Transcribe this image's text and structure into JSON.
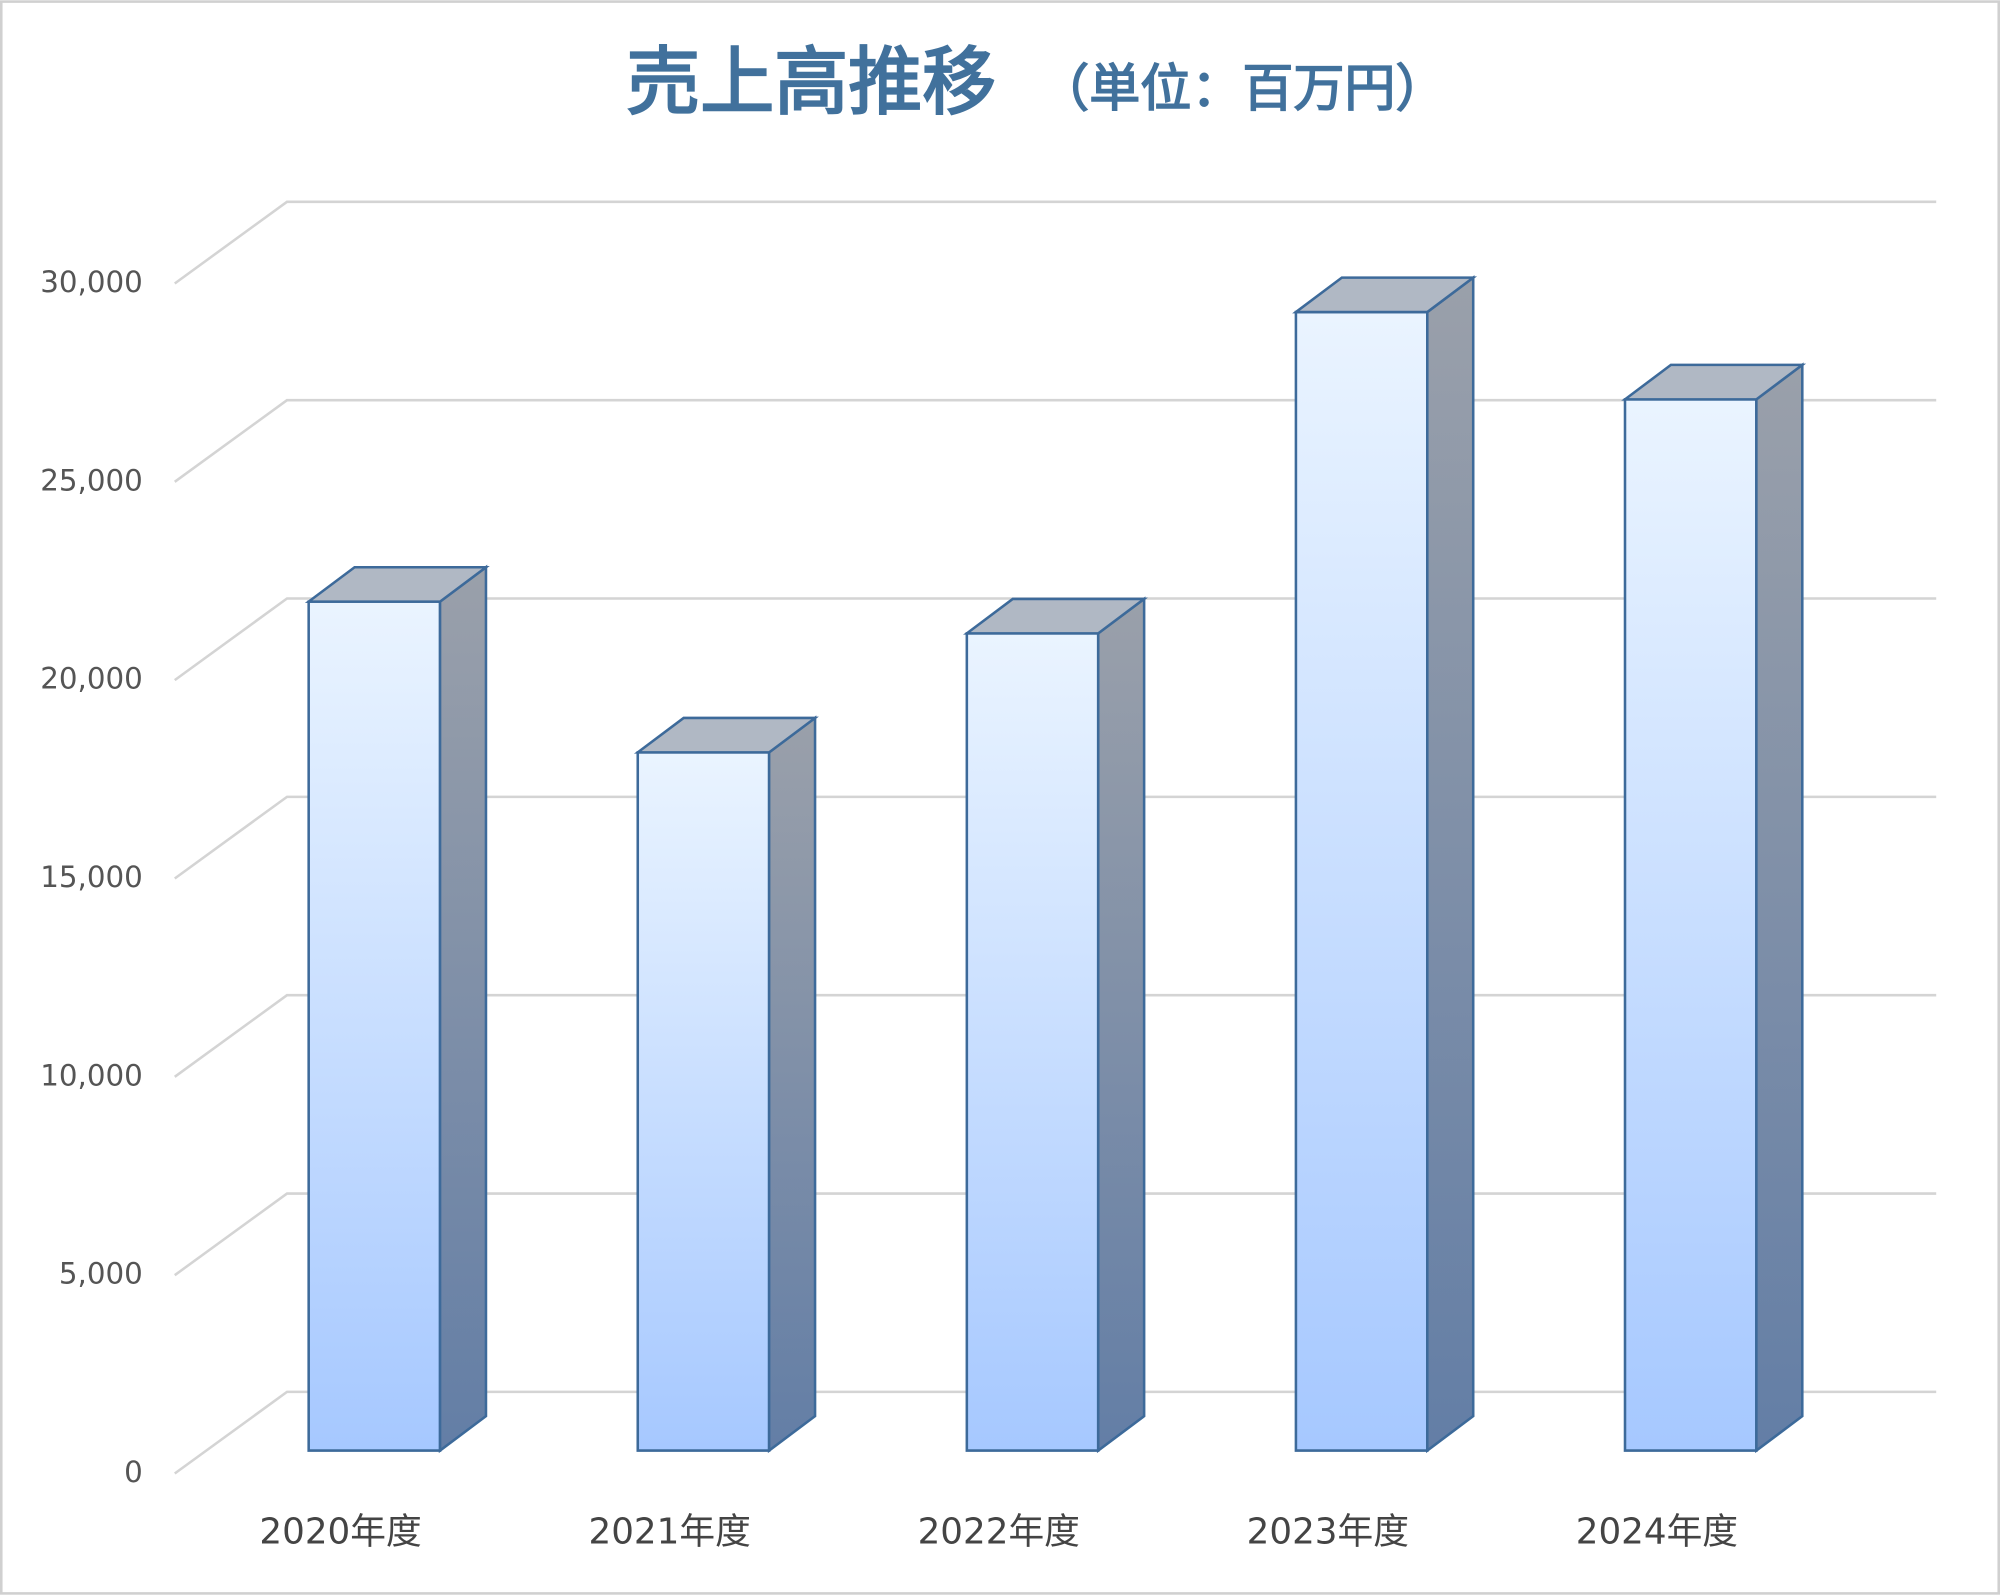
{
  "chart_data": {
    "type": "bar3d",
    "title": "売上高推移",
    "subtitle": "（単位：百万円）",
    "categories": [
      "2020年度",
      "2021年度",
      "2022年度",
      "2023年度",
      "2024年度"
    ],
    "values": [
      21400,
      17600,
      20600,
      28700,
      26500
    ],
    "color": "#a6c8ff",
    "edge_color": "#3d6a9a",
    "ylim": [
      0,
      30000
    ],
    "yticks": [
      {
        "value": 0,
        "label": "0"
      },
      {
        "value": 5000,
        "label": "5,000"
      },
      {
        "value": 10000,
        "label": "10,000"
      },
      {
        "value": 15000,
        "label": "15,000"
      },
      {
        "value": 20000,
        "label": "20,000"
      },
      {
        "value": 25000,
        "label": "25,000"
      },
      {
        "value": 30000,
        "label": "30,000"
      }
    ],
    "grid": true
  }
}
